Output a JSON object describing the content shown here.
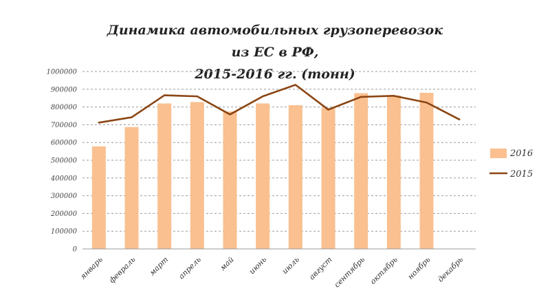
{
  "chart_data": {
    "type": "bar",
    "title_line1": "Динамика автомобильных грузоперевозок из ЕС в РФ,",
    "title_line2": "2015-2016 гг. (тонн)",
    "categories": [
      "январь",
      "февраль",
      "март",
      "апрель",
      "май",
      "июнь",
      "июль",
      "август",
      "сентябрь",
      "октябрь",
      "ноябрь",
      "декабрь"
    ],
    "series": [
      {
        "name": "2016",
        "type": "bar",
        "color": "#FAC090",
        "values": [
          578000,
          687000,
          820000,
          828000,
          775000,
          820000,
          810000,
          795000,
          878000,
          865000,
          880000,
          null
        ]
      },
      {
        "name": "2015",
        "type": "line",
        "color": "#8B4513",
        "values": [
          712000,
          742000,
          866000,
          860000,
          758000,
          860000,
          925000,
          785000,
          857000,
          863000,
          825000,
          730000
        ]
      }
    ],
    "ylim": [
      0,
      1000000
    ],
    "yticks": [
      0,
      100000,
      200000,
      300000,
      400000,
      500000,
      600000,
      700000,
      800000,
      900000,
      1000000
    ],
    "ytick_labels": [
      "0",
      "100000",
      "200000",
      "300000",
      "400000",
      "500000",
      "600000",
      "700000",
      "800000",
      "900000",
      "1000000"
    ],
    "grid": true,
    "legend_position": "right"
  }
}
